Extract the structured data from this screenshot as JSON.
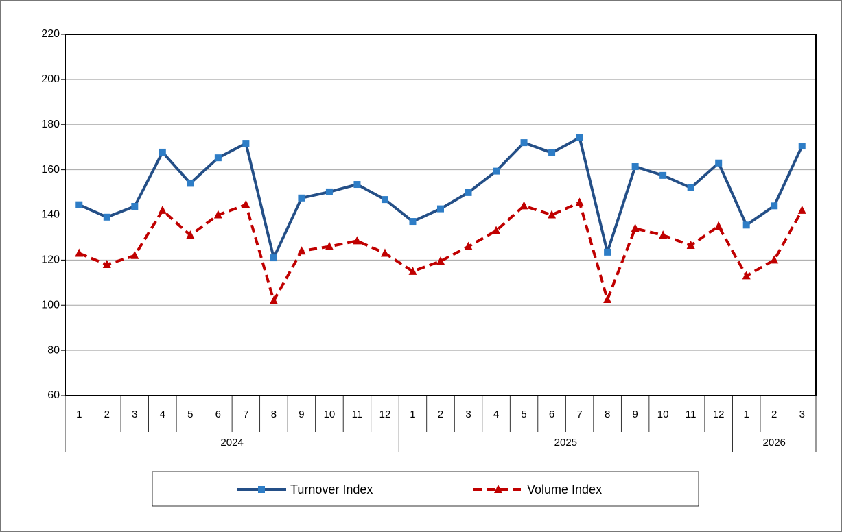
{
  "chart_data": {
    "type": "line",
    "category_groups": [
      {
        "name": "2024",
        "categories": [
          "1",
          "2",
          "3",
          "4",
          "5",
          "6",
          "7",
          "8",
          "9",
          "10",
          "11",
          "12"
        ]
      },
      {
        "name": "2025",
        "categories": [
          "1",
          "2",
          "3",
          "4",
          "5",
          "6",
          "7",
          "8",
          "9",
          "10",
          "11",
          "12"
        ]
      },
      {
        "name": "2026",
        "categories": [
          "1",
          "2",
          "3"
        ]
      }
    ],
    "series": [
      {
        "name": "Turnover Index",
        "color": "#244f87",
        "marker": "square",
        "marker_color": "#2e7dc6",
        "dash": false,
        "values": [
          144.5,
          139,
          143.8,
          167.8,
          154,
          165.3,
          171.7,
          121,
          147.5,
          150.2,
          153.5,
          146.8,
          137.1,
          142.7,
          149.9,
          159.4,
          172,
          167.5,
          174.2,
          123.5,
          161.4,
          157.5,
          152,
          163,
          135.5,
          144,
          170.5
        ]
      },
      {
        "name": "Volume Index",
        "color": "#c00000",
        "marker": "triangle",
        "marker_color": "#c00000",
        "dash": true,
        "values": [
          123,
          118,
          122,
          142,
          131,
          140,
          144.5,
          102,
          124,
          126,
          128.5,
          123,
          115,
          119.5,
          126,
          133,
          144,
          140,
          145.5,
          102.5,
          134,
          131,
          126.5,
          135,
          113,
          120,
          142
        ]
      }
    ],
    "ylim": [
      60,
      220
    ],
    "yticks": [
      60,
      80,
      100,
      120,
      140,
      160,
      180,
      200,
      220
    ],
    "grid": true,
    "legend": "bottom"
  }
}
